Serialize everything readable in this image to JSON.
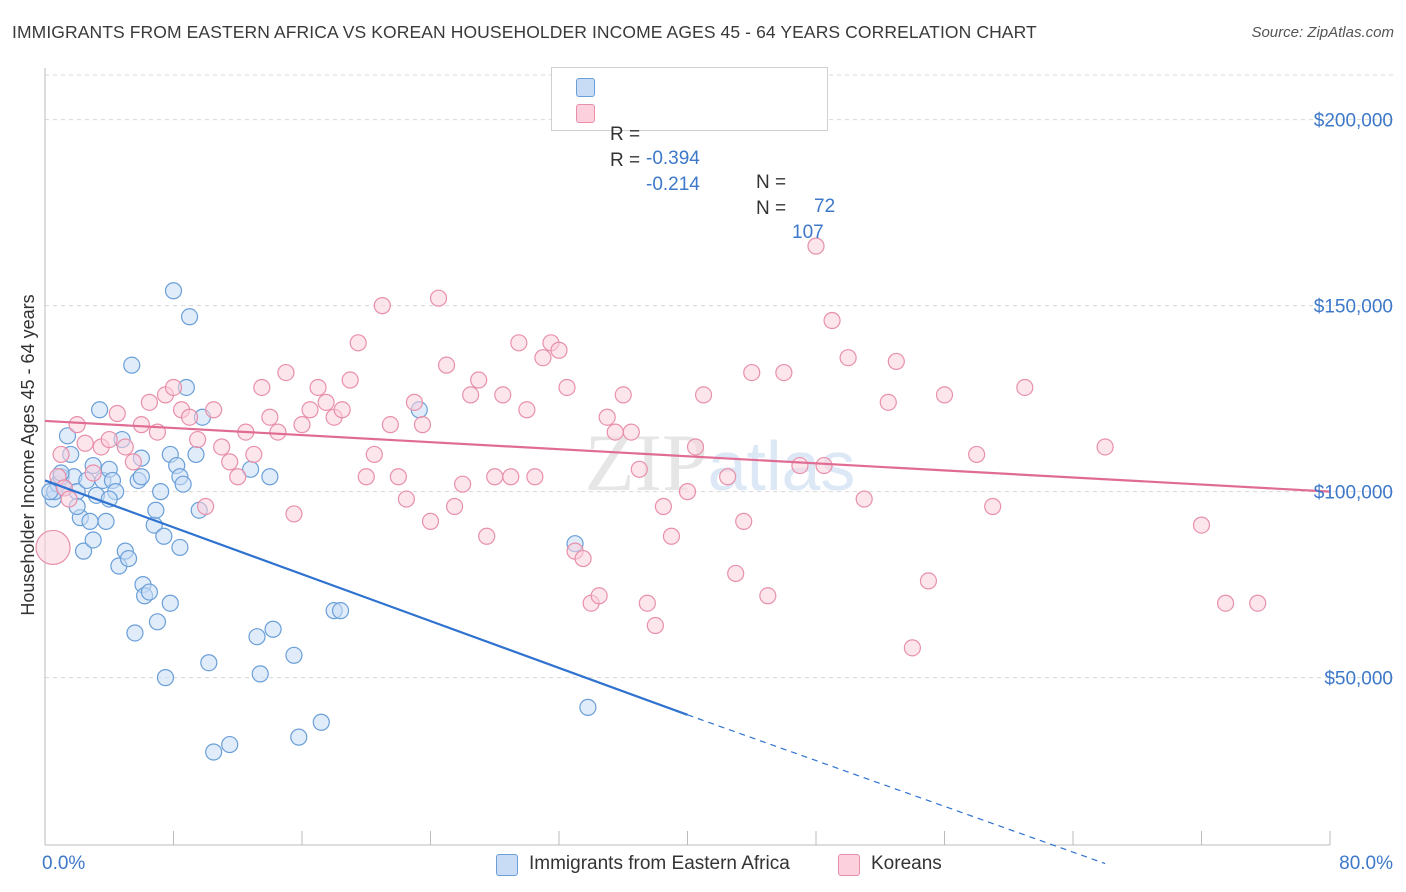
{
  "title": "IMMIGRANTS FROM EASTERN AFRICA VS KOREAN HOUSEHOLDER INCOME AGES 45 - 64 YEARS CORRELATION CHART",
  "source": "Source: ZipAtlas.com",
  "watermark": "ZIPatlas",
  "legend": {
    "rows": [
      {
        "r_label": "R =",
        "r_value": "-0.394",
        "n_label": "N =",
        "n_value": "72",
        "color": "#a8c8f0",
        "border": "#6a9fd8"
      },
      {
        "r_label": "R =",
        "r_value": "-0.214",
        "n_label": "N =",
        "n_value": "107",
        "color": "#f8c0d0",
        "border": "#e890aa"
      }
    ]
  },
  "bottom_legend": [
    {
      "label": "Immigrants from Eastern Africa",
      "color": "#c8dcf5",
      "border": "#6a9fd8"
    },
    {
      "label": "Koreans",
      "color": "#fcd0dc",
      "border": "#e890aa"
    }
  ],
  "chart_data": {
    "type": "scatter",
    "title": "IMMIGRANTS FROM EASTERN AFRICA VS KOREAN HOUSEHOLDER INCOME AGES 45 - 64 YEARS CORRELATION CHART",
    "xlabel": "",
    "ylabel": "Householder Income Ages 45 - 64 years",
    "xlim": [
      0,
      80
    ],
    "ylim": [
      5000,
      212000
    ],
    "x_tick_labels": [
      "0.0%",
      "80.0%"
    ],
    "y_ticks": [
      50000,
      100000,
      150000,
      200000
    ],
    "y_tick_labels": [
      "$50,000",
      "$100,000",
      "$150,000",
      "$200,000"
    ],
    "grid": "horizontal dashed",
    "legend_position": "top-center",
    "series": [
      {
        "name": "Immigrants from Eastern Africa",
        "color": "#6a9fd8",
        "fill": "#c8dcf5",
        "trend_color": "#2f72d0",
        "trend": {
          "x0": 0,
          "y0": 103000,
          "x1": 40,
          "y1": 40000,
          "dashed_to_x": 66,
          "dashed_to_y": 0
        },
        "points": [
          [
            0.5,
            98
          ],
          [
            0.6,
            100
          ],
          [
            0.8,
            102
          ],
          [
            1.0,
            104
          ],
          [
            1.2,
            101
          ],
          [
            1.4,
            115
          ],
          [
            1.6,
            110
          ],
          [
            1.8,
            104
          ],
          [
            2.0,
            100
          ],
          [
            2.2,
            93
          ],
          [
            2.4,
            84
          ],
          [
            2.6,
            103
          ],
          [
            2.8,
            92
          ],
          [
            3.0,
            87
          ],
          [
            3.2,
            99
          ],
          [
            3.4,
            122
          ],
          [
            3.6,
            103
          ],
          [
            3.8,
            92
          ],
          [
            4.0,
            106
          ],
          [
            4.2,
            103
          ],
          [
            4.4,
            100
          ],
          [
            4.6,
            80
          ],
          [
            4.8,
            114
          ],
          [
            5.0,
            84
          ],
          [
            5.2,
            82
          ],
          [
            5.4,
            134
          ],
          [
            5.6,
            62
          ],
          [
            5.8,
            103
          ],
          [
            6.0,
            109
          ],
          [
            6.1,
            75
          ],
          [
            6.2,
            72
          ],
          [
            6.5,
            73
          ],
          [
            6.8,
            91
          ],
          [
            6.9,
            95
          ],
          [
            7.0,
            65
          ],
          [
            7.2,
            100
          ],
          [
            7.4,
            88
          ],
          [
            7.5,
            50
          ],
          [
            7.8,
            110
          ],
          [
            7.8,
            70
          ],
          [
            8.0,
            154
          ],
          [
            8.2,
            107
          ],
          [
            8.4,
            104
          ],
          [
            8.4,
            85
          ],
          [
            8.6,
            102
          ],
          [
            8.8,
            128
          ],
          [
            9.0,
            147
          ],
          [
            9.4,
            110
          ],
          [
            9.6,
            95
          ],
          [
            9.8,
            120
          ],
          [
            10.2,
            54
          ],
          [
            10.5,
            30
          ],
          [
            11.5,
            32
          ],
          [
            12.8,
            106
          ],
          [
            13.2,
            61
          ],
          [
            13.4,
            51
          ],
          [
            14.0,
            104
          ],
          [
            14.2,
            63
          ],
          [
            15.5,
            56
          ],
          [
            15.8,
            34
          ],
          [
            17.2,
            38
          ],
          [
            18.0,
            68
          ],
          [
            18.4,
            68
          ],
          [
            23.3,
            122
          ],
          [
            33.0,
            86
          ],
          [
            33.8,
            42
          ],
          [
            0.3,
            100
          ],
          [
            1.0,
            105
          ],
          [
            2.0,
            96
          ],
          [
            3.0,
            107
          ],
          [
            4.0,
            98
          ],
          [
            6.0,
            104
          ]
        ]
      },
      {
        "name": "Koreans",
        "color": "#e890aa",
        "fill": "#fcd0dc",
        "trend_color": "#e06c94",
        "trend": {
          "x0": 0,
          "y0": 119000,
          "x1": 80,
          "y1": 100000
        },
        "points": [
          [
            0.5,
            85
          ],
          [
            0.8,
            104
          ],
          [
            1.0,
            110
          ],
          [
            1.2,
            101
          ],
          [
            1.5,
            98
          ],
          [
            2.0,
            118
          ],
          [
            2.5,
            113
          ],
          [
            3.0,
            105
          ],
          [
            3.5,
            112
          ],
          [
            4.0,
            114
          ],
          [
            4.5,
            121
          ],
          [
            5.0,
            112
          ],
          [
            5.5,
            108
          ],
          [
            6.0,
            118
          ],
          [
            6.5,
            124
          ],
          [
            7.0,
            116
          ],
          [
            7.5,
            126
          ],
          [
            8.0,
            128
          ],
          [
            8.5,
            122
          ],
          [
            9.0,
            120
          ],
          [
            9.5,
            114
          ],
          [
            10.0,
            96
          ],
          [
            10.5,
            122
          ],
          [
            11.0,
            112
          ],
          [
            11.5,
            108
          ],
          [
            12.0,
            104
          ],
          [
            12.5,
            116
          ],
          [
            13.0,
            110
          ],
          [
            13.5,
            128
          ],
          [
            14.0,
            120
          ],
          [
            14.5,
            116
          ],
          [
            15.0,
            132
          ],
          [
            15.5,
            94
          ],
          [
            16.0,
            118
          ],
          [
            16.5,
            122
          ],
          [
            17.0,
            128
          ],
          [
            17.5,
            124
          ],
          [
            18.0,
            120
          ],
          [
            18.5,
            122
          ],
          [
            19.0,
            130
          ],
          [
            19.5,
            140
          ],
          [
            20.0,
            104
          ],
          [
            20.5,
            110
          ],
          [
            21.0,
            150
          ],
          [
            21.5,
            118
          ],
          [
            22.0,
            104
          ],
          [
            22.5,
            98
          ],
          [
            23.0,
            124
          ],
          [
            23.5,
            118
          ],
          [
            24.0,
            92
          ],
          [
            24.5,
            152
          ],
          [
            25.0,
            134
          ],
          [
            25.5,
            96
          ],
          [
            26.0,
            102
          ],
          [
            26.5,
            126
          ],
          [
            27.0,
            130
          ],
          [
            27.5,
            88
          ],
          [
            28.0,
            104
          ],
          [
            28.5,
            126
          ],
          [
            29.0,
            104
          ],
          [
            29.5,
            140
          ],
          [
            30.0,
            122
          ],
          [
            30.5,
            104
          ],
          [
            31.0,
            136
          ],
          [
            31.5,
            140
          ],
          [
            32.0,
            138
          ],
          [
            32.5,
            128
          ],
          [
            33.0,
            84
          ],
          [
            33.5,
            82
          ],
          [
            34.0,
            70
          ],
          [
            34.5,
            72
          ],
          [
            35.0,
            120
          ],
          [
            35.5,
            116
          ],
          [
            36.0,
            126
          ],
          [
            36.5,
            116
          ],
          [
            37.0,
            106
          ],
          [
            37.5,
            70
          ],
          [
            38.0,
            64
          ],
          [
            38.5,
            96
          ],
          [
            39.0,
            88
          ],
          [
            40.0,
            100
          ],
          [
            40.5,
            112
          ],
          [
            41.0,
            126
          ],
          [
            42.5,
            104
          ],
          [
            43.0,
            78
          ],
          [
            43.5,
            92
          ],
          [
            44.0,
            132
          ],
          [
            45.0,
            72
          ],
          [
            46.0,
            132
          ],
          [
            47.0,
            107
          ],
          [
            48.0,
            166
          ],
          [
            48.5,
            107
          ],
          [
            49.0,
            146
          ],
          [
            50.0,
            136
          ],
          [
            51.0,
            98
          ],
          [
            52.5,
            124
          ],
          [
            53.0,
            135
          ],
          [
            54.0,
            58
          ],
          [
            55.0,
            76
          ],
          [
            56.0,
            126
          ],
          [
            58.0,
            110
          ],
          [
            59.0,
            96
          ],
          [
            61.0,
            128
          ],
          [
            66.0,
            112
          ],
          [
            72.0,
            91
          ],
          [
            73.5,
            70
          ],
          [
            75.5,
            70
          ]
        ]
      }
    ]
  }
}
